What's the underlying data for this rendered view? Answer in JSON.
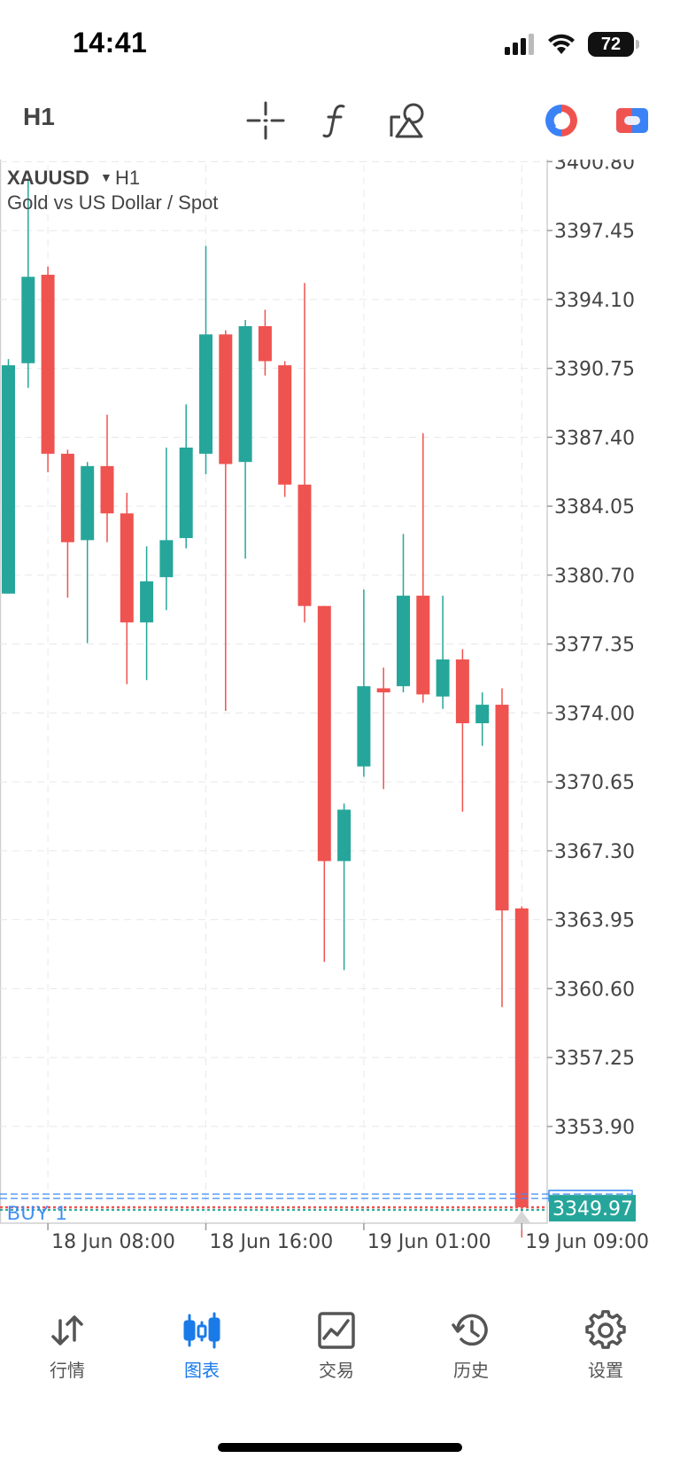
{
  "status_bar": {
    "time": "14:41",
    "battery": "72"
  },
  "toolbar": {
    "timeframe": "H1",
    "icons": [
      "crosshair-icon",
      "function-icon",
      "shapes-icon",
      "one-click-trading-icon",
      "account-switch-icon"
    ]
  },
  "chart": {
    "symbol": "XAUUSD",
    "timeframe": "H1",
    "description": "Gold vs US Dollar / Spot",
    "current_price": "3349.97",
    "order_label": "BUY 1",
    "colors": {
      "bull": "#26a69a",
      "bear": "#ef5350",
      "grid": "#e8e8e8",
      "price_tag": "#26a69a",
      "order": "#3b8cf5"
    }
  },
  "chart_data": {
    "type": "candlestick",
    "y_ticks": [
      "3400.80",
      "3397.45",
      "3394.10",
      "3390.75",
      "3387.40",
      "3384.05",
      "3380.70",
      "3377.35",
      "3374.00",
      "3370.65",
      "3367.30",
      "3363.95",
      "3360.60",
      "3357.25",
      "3353.90"
    ],
    "x_ticks": [
      "18 Jun 08:00",
      "18 Jun 16:00",
      "19 Jun 01:00",
      "19 Jun 09:00"
    ],
    "ylim": [
      3349.2,
      3400.9
    ],
    "candles": [
      {
        "o": 3379.8,
        "h": 3391.2,
        "l": 3379.8,
        "c": 3390.9
      },
      {
        "o": 3391.0,
        "h": 3399.9,
        "l": 3389.8,
        "c": 3395.2
      },
      {
        "o": 3395.3,
        "h": 3395.7,
        "l": 3385.7,
        "c": 3386.6
      },
      {
        "o": 3386.6,
        "h": 3386.8,
        "l": 3379.6,
        "c": 3382.3
      },
      {
        "o": 3382.4,
        "h": 3386.2,
        "l": 3377.4,
        "c": 3386.0
      },
      {
        "o": 3386.0,
        "h": 3388.5,
        "l": 3382.3,
        "c": 3383.7
      },
      {
        "o": 3383.7,
        "h": 3384.7,
        "l": 3375.4,
        "c": 3378.4
      },
      {
        "o": 3378.4,
        "h": 3382.1,
        "l": 3375.6,
        "c": 3380.4
      },
      {
        "o": 3380.6,
        "h": 3386.9,
        "l": 3379.0,
        "c": 3382.4
      },
      {
        "o": 3382.5,
        "h": 3389.0,
        "l": 3382.0,
        "c": 3386.9
      },
      {
        "o": 3386.6,
        "h": 3396.7,
        "l": 3385.6,
        "c": 3392.4
      },
      {
        "o": 3392.4,
        "h": 3392.6,
        "l": 3374.1,
        "c": 3386.1
      },
      {
        "o": 3386.2,
        "h": 3393.1,
        "l": 3381.5,
        "c": 3392.8
      },
      {
        "o": 3392.8,
        "h": 3393.6,
        "l": 3390.4,
        "c": 3391.1
      },
      {
        "o": 3390.9,
        "h": 3391.1,
        "l": 3384.5,
        "c": 3385.1
      },
      {
        "o": 3385.1,
        "h": 3394.9,
        "l": 3378.4,
        "c": 3379.2
      },
      {
        "o": 3379.2,
        "h": 3379.2,
        "l": 3361.9,
        "c": 3366.8
      },
      {
        "o": 3366.8,
        "h": 3369.6,
        "l": 3361.5,
        "c": 3369.3
      },
      {
        "o": 3371.4,
        "h": 3380.0,
        "l": 3370.9,
        "c": 3375.3
      },
      {
        "o": 3375.2,
        "h": 3376.2,
        "l": 3370.3,
        "c": 3375.0
      },
      {
        "o": 3375.3,
        "h": 3382.7,
        "l": 3375.0,
        "c": 3379.7
      },
      {
        "o": 3379.7,
        "h": 3387.6,
        "l": 3374.5,
        "c": 3374.9
      },
      {
        "o": 3374.8,
        "h": 3379.7,
        "l": 3374.2,
        "c": 3376.6
      },
      {
        "o": 3376.6,
        "h": 3377.1,
        "l": 3369.2,
        "c": 3373.5
      },
      {
        "o": 3373.5,
        "h": 3375.0,
        "l": 3372.4,
        "c": 3374.4
      },
      {
        "o": 3374.4,
        "h": 3375.2,
        "l": 3359.7,
        "c": 3364.4
      },
      {
        "o": 3364.5,
        "h": 3364.6,
        "l": 3348.5,
        "c": 3349.97
      }
    ]
  },
  "nav": {
    "items": [
      {
        "label": "行情",
        "icon": "quotes-arrows-icon"
      },
      {
        "label": "图表",
        "icon": "chart-candles-icon",
        "active": true
      },
      {
        "label": "交易",
        "icon": "trade-chart-icon"
      },
      {
        "label": "历史",
        "icon": "history-clock-icon"
      },
      {
        "label": "设置",
        "icon": "settings-gear-icon"
      }
    ]
  }
}
